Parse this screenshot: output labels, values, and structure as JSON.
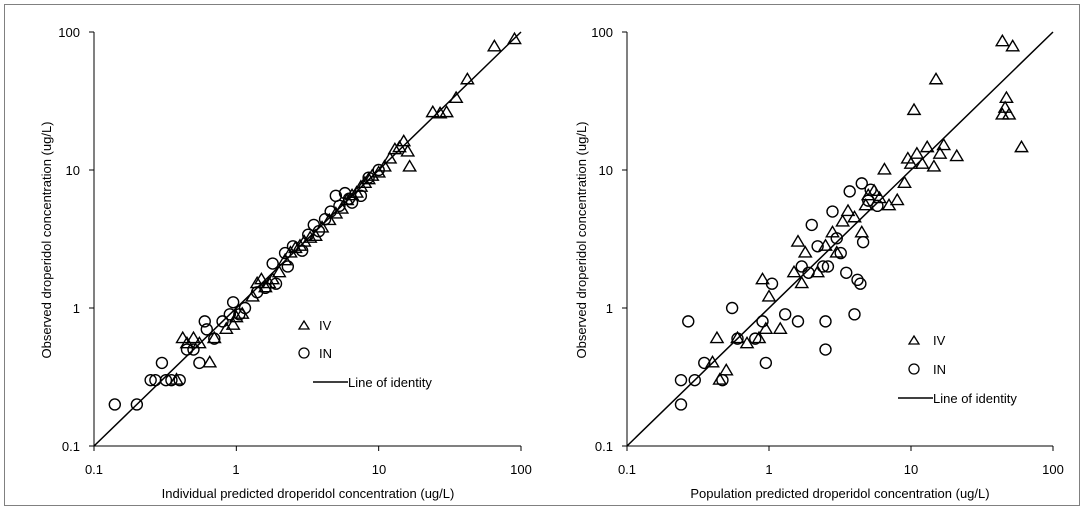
{
  "chart_data": [
    {
      "type": "scatter",
      "xlabel": "Individual predicted droperidol concentration (ug/L)",
      "ylabel": "Observed droperidol concentration (ug/L)",
      "xscale": "log",
      "yscale": "log",
      "xlim": [
        0.1,
        100
      ],
      "ylim": [
        0.1,
        100
      ],
      "xticks": [
        "0.1",
        "1",
        "10",
        "100"
      ],
      "yticks": [
        "0.1",
        "1",
        "10",
        "100"
      ],
      "grid": false,
      "legend_position": "center-right",
      "line_of_identity_label": "Line of identity",
      "series": [
        {
          "name": "IV",
          "marker": "triangle",
          "points": [
            [
              0.38,
              0.3
            ],
            [
              0.42,
              0.6
            ],
            [
              0.45,
              0.55
            ],
            [
              0.5,
              0.6
            ],
            [
              0.55,
              0.55
            ],
            [
              0.65,
              0.4
            ],
            [
              0.7,
              0.6
            ],
            [
              0.85,
              0.7
            ],
            [
              0.95,
              0.75
            ],
            [
              1.0,
              0.85
            ],
            [
              1.1,
              0.9
            ],
            [
              1.3,
              1.2
            ],
            [
              1.4,
              1.5
            ],
            [
              1.5,
              1.6
            ],
            [
              1.6,
              1.4
            ],
            [
              1.7,
              1.5
            ],
            [
              1.8,
              1.6
            ],
            [
              2.0,
              1.8
            ],
            [
              2.2,
              2.2
            ],
            [
              2.4,
              2.5
            ],
            [
              2.6,
              2.7
            ],
            [
              2.8,
              2.8
            ],
            [
              3.0,
              3.0
            ],
            [
              3.3,
              3.2
            ],
            [
              3.6,
              3.3
            ],
            [
              4.0,
              3.8
            ],
            [
              4.5,
              4.3
            ],
            [
              5.0,
              4.8
            ],
            [
              5.5,
              5.2
            ],
            [
              6.0,
              6.0
            ],
            [
              6.5,
              6.5
            ],
            [
              7.0,
              6.8
            ],
            [
              7.5,
              7.5
            ],
            [
              8.0,
              8.0
            ],
            [
              8.5,
              8.5
            ],
            [
              9.0,
              9.0
            ],
            [
              10.0,
              9.5
            ],
            [
              11.0,
              10.5
            ],
            [
              12.0,
              12.0
            ],
            [
              13.0,
              14.0
            ],
            [
              14.0,
              14.5
            ],
            [
              15.0,
              16.0
            ],
            [
              16.0,
              13.5
            ],
            [
              16.5,
              10.5
            ],
            [
              24.0,
              26.0
            ],
            [
              27.0,
              25.5
            ],
            [
              30.0,
              26.0
            ],
            [
              35.0,
              33.0
            ],
            [
              42.0,
              45.0
            ],
            [
              65.0,
              78.0
            ],
            [
              90.0,
              88.0
            ]
          ]
        },
        {
          "name": "IN",
          "marker": "circle",
          "points": [
            [
              0.14,
              0.2
            ],
            [
              0.2,
              0.2
            ],
            [
              0.25,
              0.3
            ],
            [
              0.27,
              0.3
            ],
            [
              0.3,
              0.4
            ],
            [
              0.32,
              0.3
            ],
            [
              0.35,
              0.3
            ],
            [
              0.4,
              0.3
            ],
            [
              0.45,
              0.5
            ],
            [
              0.5,
              0.5
            ],
            [
              0.55,
              0.4
            ],
            [
              0.6,
              0.8
            ],
            [
              0.62,
              0.7
            ],
            [
              0.7,
              0.6
            ],
            [
              0.8,
              0.8
            ],
            [
              0.9,
              0.9
            ],
            [
              0.95,
              1.1
            ],
            [
              1.05,
              0.9
            ],
            [
              1.15,
              1.0
            ],
            [
              1.4,
              1.3
            ],
            [
              1.6,
              1.4
            ],
            [
              1.8,
              2.1
            ],
            [
              1.9,
              1.5
            ],
            [
              2.2,
              2.5
            ],
            [
              2.3,
              2.0
            ],
            [
              2.5,
              2.8
            ],
            [
              2.9,
              2.6
            ],
            [
              3.2,
              3.4
            ],
            [
              3.5,
              4.0
            ],
            [
              3.8,
              3.6
            ],
            [
              4.2,
              4.4
            ],
            [
              4.6,
              5.0
            ],
            [
              5.0,
              6.5
            ],
            [
              5.3,
              5.5
            ],
            [
              5.8,
              6.8
            ],
            [
              6.2,
              6.2
            ],
            [
              6.5,
              5.8
            ],
            [
              7.5,
              6.5
            ],
            [
              8.5,
              8.8
            ],
            [
              10.0,
              10.0
            ]
          ]
        }
      ]
    },
    {
      "type": "scatter",
      "xlabel": "Population predicted droperidol concentration (ug/L)",
      "ylabel": "Observed droperidol concentration (ug/L)",
      "xscale": "log",
      "yscale": "log",
      "xlim": [
        0.1,
        100
      ],
      "ylim": [
        0.1,
        100
      ],
      "xticks": [
        "0.1",
        "1",
        "10",
        "100"
      ],
      "yticks": [
        "0.1",
        "1",
        "10",
        "100"
      ],
      "grid": false,
      "legend_position": "bottom-right",
      "line_of_identity_label": "Line of identity",
      "series": [
        {
          "name": "IV",
          "marker": "triangle",
          "points": [
            [
              0.4,
              0.4
            ],
            [
              0.43,
              0.6
            ],
            [
              0.45,
              0.3
            ],
            [
              0.5,
              0.35
            ],
            [
              0.6,
              0.6
            ],
            [
              0.7,
              0.55
            ],
            [
              0.85,
              0.6
            ],
            [
              0.9,
              1.6
            ],
            [
              0.95,
              0.7
            ],
            [
              1.0,
              1.2
            ],
            [
              1.2,
              0.7
            ],
            [
              1.5,
              1.8
            ],
            [
              1.6,
              3.0
            ],
            [
              1.7,
              1.5
            ],
            [
              1.8,
              2.5
            ],
            [
              2.2,
              1.8
            ],
            [
              2.5,
              2.8
            ],
            [
              2.8,
              3.5
            ],
            [
              3.0,
              2.5
            ],
            [
              3.3,
              4.2
            ],
            [
              3.6,
              5.0
            ],
            [
              4.0,
              4.5
            ],
            [
              4.5,
              3.5
            ],
            [
              4.8,
              5.5
            ],
            [
              5.0,
              6.5
            ],
            [
              5.5,
              7.0
            ],
            [
              6.0,
              6.2
            ],
            [
              6.5,
              10.0
            ],
            [
              7.0,
              5.5
            ],
            [
              8.0,
              6.0
            ],
            [
              9.0,
              8.0
            ],
            [
              9.5,
              12.0
            ],
            [
              10.0,
              11.0
            ],
            [
              10.5,
              27.0
            ],
            [
              11.0,
              13.0
            ],
            [
              12.0,
              11.0
            ],
            [
              13.0,
              14.5
            ],
            [
              14.5,
              10.5
            ],
            [
              15.0,
              45.0
            ],
            [
              16.0,
              13.0
            ],
            [
              17.0,
              15.0
            ],
            [
              21.0,
              12.5
            ],
            [
              44.0,
              85.0
            ],
            [
              44.0,
              25.0
            ],
            [
              46.0,
              28.0
            ],
            [
              47.0,
              33.0
            ],
            [
              49.0,
              25.0
            ],
            [
              52.0,
              78.0
            ],
            [
              60.0,
              14.5
            ]
          ]
        },
        {
          "name": "IN",
          "marker": "circle",
          "points": [
            [
              0.24,
              0.2
            ],
            [
              0.24,
              0.3
            ],
            [
              0.27,
              0.8
            ],
            [
              0.3,
              0.3
            ],
            [
              0.35,
              0.4
            ],
            [
              0.47,
              0.3
            ],
            [
              0.55,
              1.0
            ],
            [
              0.6,
              0.6
            ],
            [
              0.8,
              0.6
            ],
            [
              0.9,
              0.8
            ],
            [
              0.95,
              0.4
            ],
            [
              1.05,
              1.5
            ],
            [
              1.3,
              0.9
            ],
            [
              1.6,
              0.8
            ],
            [
              1.7,
              2.0
            ],
            [
              1.9,
              1.8
            ],
            [
              2.0,
              4.0
            ],
            [
              2.2,
              2.8
            ],
            [
              2.4,
              2.0
            ],
            [
              2.5,
              0.8
            ],
            [
              2.5,
              0.5
            ],
            [
              2.6,
              2.0
            ],
            [
              2.8,
              5.0
            ],
            [
              3.0,
              3.2
            ],
            [
              3.2,
              2.5
            ],
            [
              3.5,
              1.8
            ],
            [
              3.7,
              7.0
            ],
            [
              4.0,
              0.9
            ],
            [
              4.2,
              1.6
            ],
            [
              4.4,
              1.5
            ],
            [
              4.5,
              8.0
            ],
            [
              4.6,
              3.0
            ],
            [
              5.0,
              6.0
            ],
            [
              5.2,
              7.2
            ],
            [
              5.8,
              5.5
            ]
          ]
        }
      ]
    }
  ]
}
